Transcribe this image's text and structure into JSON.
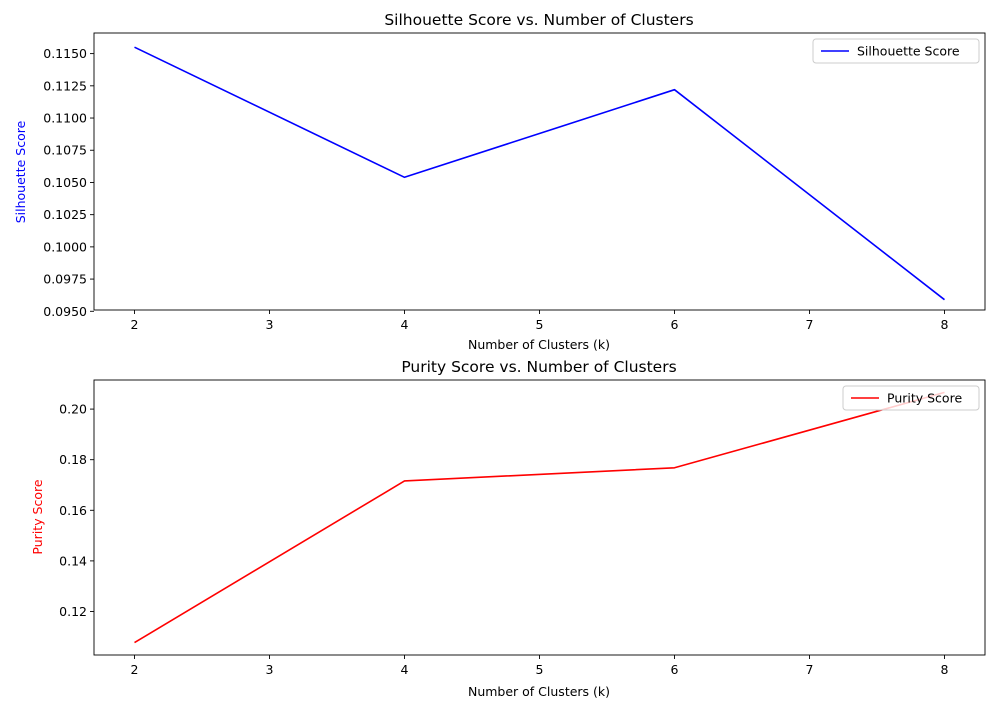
{
  "chart_data": [
    {
      "type": "line",
      "title": "Silhouette Score vs. Number of Clusters",
      "xlabel": "Number of Clusters (k)",
      "ylabel": "Silhouette Score",
      "ylabel_color": "#0000ff",
      "x_ticks": [
        2,
        3,
        4,
        5,
        6,
        7,
        8
      ],
      "y_ticks": [
        0.095,
        0.0975,
        0.1,
        0.1025,
        0.105,
        0.1075,
        0.11,
        0.1125,
        0.115
      ],
      "y_tick_labels": [
        "0.0950",
        "0.0975",
        "0.1000",
        "0.1025",
        "0.1050",
        "0.1075",
        "0.1100",
        "0.1125",
        "0.1150"
      ],
      "xlim": [
        1.7,
        8.3
      ],
      "ylim": [
        0.0951,
        0.1166
      ],
      "grid": false,
      "legend_position": "top-right",
      "series": [
        {
          "name": "Silhouette Score",
          "color": "#0000ff",
          "x": [
            2,
            4,
            6,
            8
          ],
          "y": [
            0.1155,
            0.1054,
            0.1122,
            0.0959
          ]
        }
      ]
    },
    {
      "type": "line",
      "title": "Purity Score vs. Number of Clusters",
      "xlabel": "Number of Clusters (k)",
      "ylabel": "Purity Score",
      "ylabel_color": "#ff0000",
      "x_ticks": [
        2,
        3,
        4,
        5,
        6,
        7,
        8
      ],
      "y_ticks": [
        0.12,
        0.14,
        0.16,
        0.18,
        0.2
      ],
      "y_tick_labels": [
        "0.12",
        "0.14",
        "0.16",
        "0.18",
        "0.20"
      ],
      "xlim": [
        1.7,
        8.3
      ],
      "ylim": [
        0.1028,
        0.2115
      ],
      "grid": false,
      "legend_position": "top-right",
      "series": [
        {
          "name": "Purity Score",
          "color": "#ff0000",
          "x": [
            2,
            4,
            6,
            8
          ],
          "y": [
            0.1077,
            0.1716,
            0.1768,
            0.2066
          ]
        }
      ]
    }
  ]
}
